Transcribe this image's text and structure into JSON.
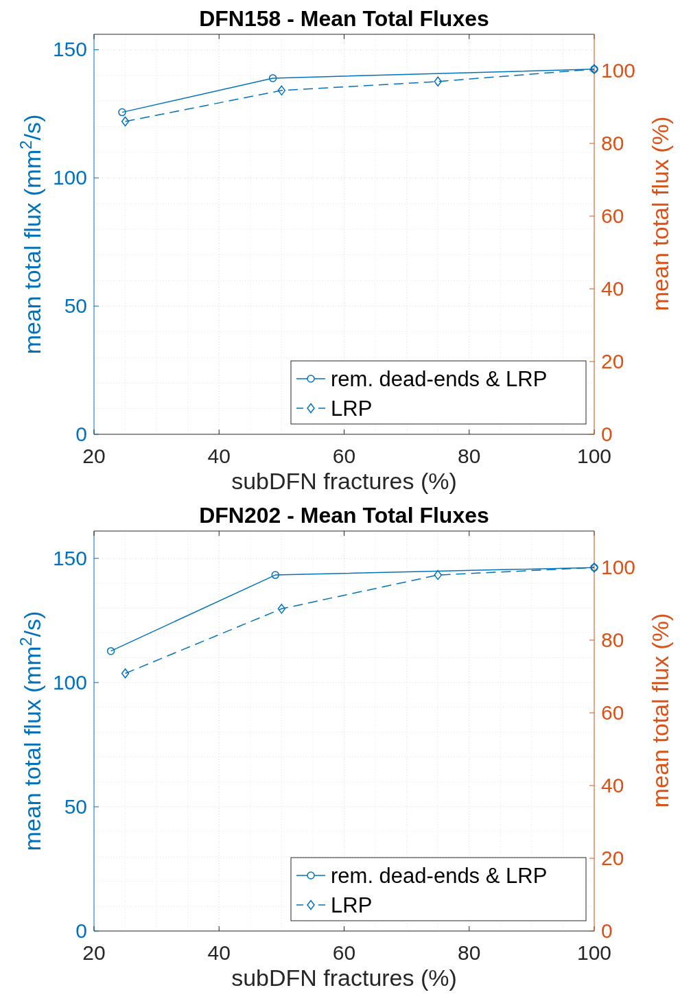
{
  "chart_data": [
    {
      "type": "line",
      "title": "DFN158 - Mean Total Fluxes",
      "xlabel": "subDFN fractures (%)",
      "ylabel": "mean total flux (mm$^{2}$/s)",
      "y2label": "mean total flux (%)",
      "xlim": [
        20,
        100
      ],
      "xticks": [
        20,
        40,
        60,
        80,
        100
      ],
      "ylim": [
        0,
        156
      ],
      "yticks": [
        0,
        50,
        100,
        150
      ],
      "y2lim": [
        0,
        110
      ],
      "y2ticks": [
        0,
        20,
        40,
        60,
        80,
        100
      ],
      "grid": true,
      "legend": "bottom right",
      "series": [
        {
          "name": "rem. dead-ends & LRP",
          "color": "#0072bd",
          "marker": "circle",
          "line_style": "solid",
          "x": [
            24.5,
            48.6,
            100
          ],
          "values": [
            125.6,
            138.9,
            142.4
          ]
        },
        {
          "name": "LRP",
          "color": "#0072bd",
          "marker": "diamond",
          "line_style": "dashed",
          "x": [
            25,
            50,
            75,
            100
          ],
          "values": [
            122.0,
            134.1,
            137.6,
            142.4
          ]
        }
      ]
    },
    {
      "type": "line",
      "title": "DFN202 - Mean Total Fluxes",
      "xlabel": "subDFN fractures (%)",
      "ylabel": "mean total flux (mm$^{2}$/s)",
      "y2label": "mean total flux (%)",
      "xlim": [
        20,
        100
      ],
      "xticks": [
        20,
        40,
        60,
        80,
        100
      ],
      "ylim": [
        0,
        161
      ],
      "yticks": [
        0,
        50,
        100,
        150
      ],
      "y2lim": [
        0,
        110
      ],
      "y2ticks": [
        0,
        20,
        40,
        60,
        80,
        100
      ],
      "grid": true,
      "legend": "bottom right",
      "series": [
        {
          "name": "rem. dead-ends & LRP",
          "color": "#0072bd",
          "marker": "circle",
          "line_style": "solid",
          "x": [
            22.7,
            49.0,
            100
          ],
          "values": [
            112.7,
            143.3,
            146.3
          ]
        },
        {
          "name": "LRP",
          "color": "#0072bd",
          "marker": "diamond",
          "line_style": "dashed",
          "x": [
            25,
            50,
            75,
            100
          ],
          "values": [
            103.7,
            129.7,
            143.3,
            146.3
          ]
        }
      ]
    }
  ]
}
